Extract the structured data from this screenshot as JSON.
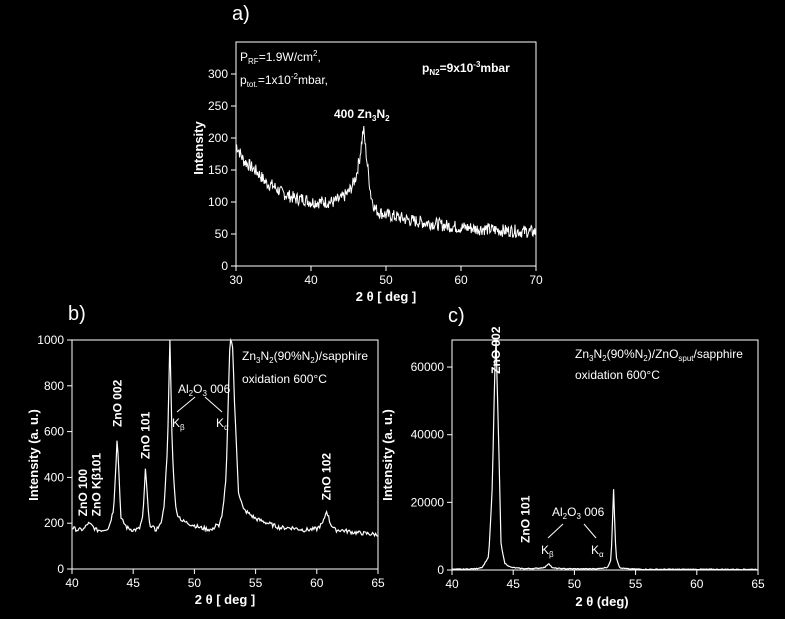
{
  "chart_data": [
    {
      "id": "a",
      "type": "line",
      "panel_label": "a)",
      "xlabel": "2 θ [ deg ]",
      "ylabel": "Intensity",
      "xlim": [
        30,
        70
      ],
      "ylim": [
        0,
        350
      ],
      "xticks": [
        30,
        40,
        50,
        60,
        70
      ],
      "yticks": [
        0,
        50,
        100,
        150,
        200,
        250,
        300
      ],
      "series": [
        {
          "x": [
            30,
            31,
            32,
            33,
            34,
            35,
            36,
            37,
            38,
            39,
            40,
            41,
            42,
            43,
            44,
            45,
            45.5,
            46,
            46.5,
            47,
            47.5,
            48,
            48.5,
            49,
            50,
            51,
            52,
            53,
            54,
            55,
            56,
            57,
            58,
            59,
            60,
            61,
            62,
            63,
            64,
            65,
            66,
            67,
            68,
            69,
            70
          ],
          "y": [
            190,
            165,
            155,
            145,
            130,
            125,
            115,
            110,
            105,
            105,
            100,
            100,
            100,
            100,
            105,
            115,
            125,
            140,
            170,
            215,
            160,
            110,
            90,
            85,
            80,
            78,
            75,
            72,
            70,
            68,
            67,
            65,
            63,
            62,
            60,
            60,
            58,
            58,
            57,
            56,
            55,
            55,
            54,
            54,
            53
          ]
        }
      ],
      "annotations": [
        {
          "text": "400 Zn3N2",
          "x": 47.2,
          "y": 228
        }
      ],
      "info_lines": [
        "PRF=1.9W/cm2,",
        "ptot.=1x10-2mbar,"
      ],
      "pn2": "pN2=9x10-3mbar"
    },
    {
      "id": "b",
      "type": "line",
      "panel_label": "b)",
      "xlabel": "2 θ [ deg ]",
      "ylabel": "Intensity (a. u.)",
      "xlim": [
        40,
        65
      ],
      "ylim": [
        0,
        1000
      ],
      "xticks": [
        40,
        45,
        50,
        55,
        60,
        65
      ],
      "yticks": [
        0,
        200,
        400,
        600,
        800,
        1000
      ],
      "series": [
        {
          "x": [
            40,
            40.5,
            41,
            41.3,
            41.6,
            42,
            42.5,
            43,
            43.4,
            43.7,
            44,
            44.5,
            45,
            45.5,
            45.8,
            46.0,
            46.3,
            46.8,
            47.2,
            47.5,
            47.8,
            48.0,
            48.2,
            48.5,
            49,
            49.5,
            50,
            50.5,
            51,
            51.5,
            51.8,
            52.0,
            52.3,
            52.6,
            52.9,
            53.1,
            53.3,
            53.6,
            54,
            54.5,
            55,
            56,
            57,
            58,
            59,
            60,
            60.5,
            60.8,
            61.1,
            61.5,
            62,
            63,
            64,
            65
          ],
          "y": [
            180,
            170,
            175,
            200,
            190,
            170,
            170,
            180,
            260,
            580,
            220,
            180,
            170,
            175,
            230,
            440,
            200,
            170,
            190,
            260,
            520,
            1000,
            500,
            250,
            210,
            200,
            190,
            180,
            175,
            170,
            200,
            180,
            250,
            400,
            1000,
            1000,
            700,
            340,
            260,
            240,
            220,
            200,
            180,
            180,
            170,
            175,
            200,
            255,
            200,
            170,
            170,
            160,
            155,
            150
          ]
        }
      ],
      "annotations": [
        {
          "text": "ZnO 100",
          "x": 40.9,
          "y": 230
        },
        {
          "text": "ZnO Kβ101",
          "x": 42.0,
          "y": 230
        },
        {
          "text": "ZnO 002",
          "x": 43.7,
          "y": 620
        },
        {
          "text": "ZnO 101",
          "x": 46.0,
          "y": 480
        },
        {
          "text": "ZnO 102",
          "x": 60.8,
          "y": 300
        }
      ],
      "al2o3_label": "Al2O3 006",
      "k_labels": [
        "Kβ",
        "Kα"
      ],
      "legend_lines": [
        "Zn3N2(90%N2)/sapphire",
        "oxidation 600°C"
      ]
    },
    {
      "id": "c",
      "type": "line",
      "panel_label": "c)",
      "xlabel": "2 θ (deg)",
      "ylabel": "Intensity (a. u.)",
      "xlim": [
        40,
        65
      ],
      "ylim": [
        0,
        68000
      ],
      "xticks": [
        40,
        45,
        50,
        55,
        60,
        65
      ],
      "yticks": [
        0,
        20000,
        40000,
        60000
      ],
      "series": [
        {
          "x": [
            40,
            41,
            42,
            42.5,
            43,
            43.3,
            43.5,
            43.6,
            43.8,
            44.0,
            44.3,
            44.8,
            45.5,
            46,
            47,
            47.6,
            47.9,
            48.2,
            49,
            50,
            51,
            52,
            52.7,
            53.0,
            53.2,
            53.4,
            53.7,
            54.5,
            56,
            58,
            60,
            62,
            65
          ],
          "y": [
            200,
            250,
            400,
            900,
            4000,
            25000,
            60000,
            68000,
            40000,
            8000,
            2000,
            800,
            500,
            400,
            500,
            800,
            2000,
            600,
            400,
            350,
            350,
            400,
            800,
            3000,
            24000,
            4000,
            600,
            300,
            200,
            200,
            200,
            200,
            200
          ]
        }
      ],
      "annotations": [
        {
          "text": "ZnO 002",
          "x": 43.6,
          "y": 58000
        },
        {
          "text": "ZnO 101",
          "x": 46.0,
          "y": 8000
        }
      ],
      "al2o3_label": "Al2O3 006",
      "k_labels": [
        "Kβ",
        "Kα"
      ],
      "legend_lines": [
        "Zn3N2(90%N2)/ZnOsput/sapphire",
        "oxidation 600°C"
      ]
    }
  ]
}
